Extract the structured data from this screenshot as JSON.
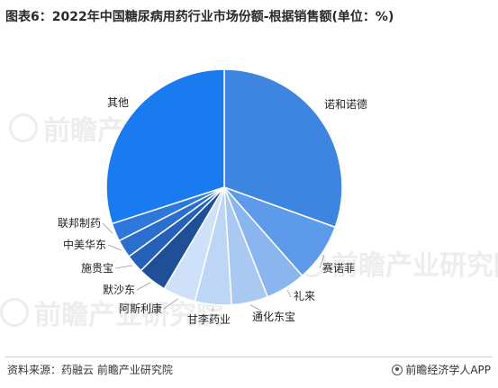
{
  "title": "图表6：2022年中国糖尿病用药行业市场份额-根据销售额(单位：%)",
  "chart_data": {
    "type": "pie",
    "title": "图表6：2022年中国糖尿病用药行业市场份额-根据销售额(单位：%)",
    "unit": "%",
    "slices": [
      {
        "label": "诺和诺德",
        "value": 30.5,
        "color": "#3d85e0"
      },
      {
        "label": "赛诺菲",
        "value": 8.0,
        "color": "#5e9aea"
      },
      {
        "label": "礼来",
        "value": 5.5,
        "color": "#8ab5ef"
      },
      {
        "label": "通化东宝",
        "value": 5.0,
        "color": "#a9c9f3"
      },
      {
        "label": "甘李药业",
        "value": 5.0,
        "color": "#bdd6f6"
      },
      {
        "label": "阿斯利康",
        "value": 4.5,
        "color": "#cfe1f9"
      },
      {
        "label": "默沙东",
        "value": 4.0,
        "color": "#1f4f96"
      },
      {
        "label": "施贵宝",
        "value": 2.5,
        "color": "#2561b8"
      },
      {
        "label": "中美华东",
        "value": 2.5,
        "color": "#2a6fce"
      },
      {
        "label": "联邦制药",
        "value": 2.5,
        "color": "#2e78dc"
      },
      {
        "label": "其他",
        "value": 30.0,
        "color": "#1a7af0"
      }
    ]
  },
  "watermark": {
    "text": "前瞻产业研究院"
  },
  "footer": {
    "source": "资料来源：药融云 前瞻产业研究院",
    "brand": "前瞻经济学人APP"
  }
}
